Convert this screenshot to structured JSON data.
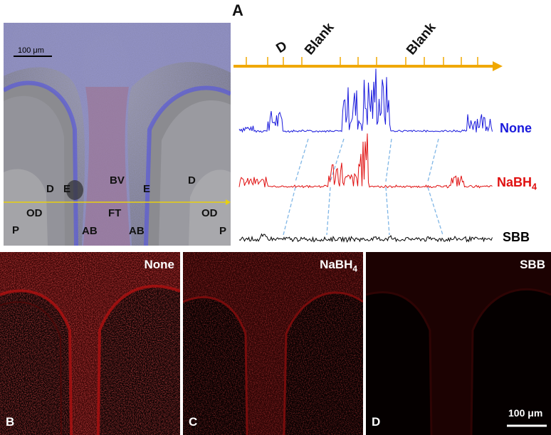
{
  "figure": {
    "panel_a_letter": "A",
    "micrograph": {
      "scale_bar": "100 μm",
      "labels": {
        "D_left": "D",
        "E_left": "E",
        "BV": "BV",
        "E_right": "E",
        "D_right": "D",
        "OD_left": "OD",
        "FT": "FT",
        "OD_right": "OD",
        "P_left": "P",
        "AB_left": "AB",
        "AB_right": "AB",
        "P_right": "P"
      }
    },
    "profile_axis": {
      "marks": [
        "D",
        "Blank",
        "Blank"
      ],
      "axis_color": "#f0a800"
    },
    "traces": [
      {
        "name": "None",
        "color": "#1a1adc"
      },
      {
        "name_main": "NaBH",
        "name_sub": "4",
        "color": "#e01010"
      },
      {
        "name": "SBB",
        "color": "#000000"
      }
    ],
    "panels": [
      {
        "title": "None",
        "letter": "B"
      },
      {
        "title_main": "NaBH",
        "title_sub": "4",
        "letter": "C"
      },
      {
        "title": "SBB",
        "letter": "D",
        "scale_bar": "100 μm"
      }
    ],
    "colors": {
      "fluorescence": "#d01818",
      "nuclei": "#4a4ae0",
      "guide_lines": "#7fb6e6"
    }
  }
}
